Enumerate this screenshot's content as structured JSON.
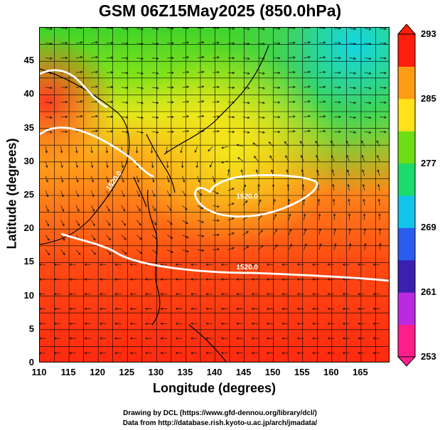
{
  "title": "GSM 06Z15May2025 (850.0hPa)",
  "map": {
    "lon_range": [
      110,
      170
    ],
    "lat_range": [
      0,
      50
    ],
    "xlabel": "Longitude (degrees)",
    "ylabel": "Latitude  (degrees)",
    "x_ticks": [
      "110",
      "115",
      "120",
      "125",
      "130",
      "135",
      "140",
      "145",
      "150",
      "155",
      "160",
      "165"
    ],
    "y_ticks": [
      "0",
      "5",
      "10",
      "15",
      "20",
      "25",
      "30",
      "35",
      "40",
      "45"
    ],
    "grid": true,
    "contour_labels": [
      {
        "text": "1520.0",
        "lon": 123,
        "lat": 27
      },
      {
        "text": "1520.0",
        "lon": 145.5,
        "lat": 24.5
      },
      {
        "text": "1520.0",
        "lon": 145.5,
        "lat": 14
      }
    ],
    "colors": {
      "warm_red": "#ff2b10",
      "orange": "#ff7a1a",
      "yellow": "#ffe21a",
      "green": "#35d020",
      "cyan": "#11d8e6"
    }
  },
  "colorbar": {
    "min": 253,
    "max": 293,
    "labels": [
      "293",
      "285",
      "277",
      "269",
      "261",
      "253"
    ],
    "colors": [
      "#ff1e8c",
      "#bb2ae0",
      "#3b1fb0",
      "#2a5cf0",
      "#12c4ea",
      "#1bdc6a",
      "#6dde13",
      "#ffe21a",
      "#ff9d14",
      "#ff1e0a"
    ]
  },
  "credits": {
    "line1": "Drawing by DCL (https://www.gfd-dennou.org/library/dcl/)",
    "line2": "Data from http://database.rish.kyoto-u.ac.jp/arch/jmadata/"
  }
}
